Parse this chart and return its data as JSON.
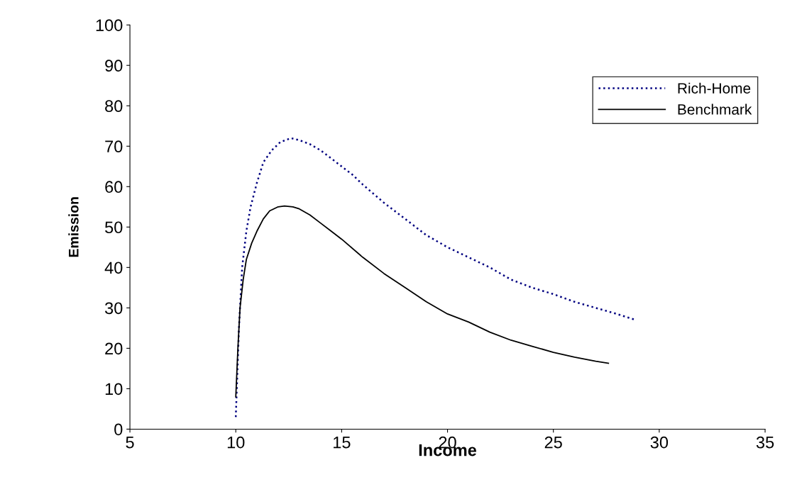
{
  "chart_data": {
    "type": "line",
    "xlabel": "Income",
    "ylabel": "Emission",
    "xlim": [
      5,
      35
    ],
    "xticks": [
      5,
      10,
      15,
      20,
      25,
      30,
      35
    ],
    "ylim": [
      0,
      100
    ],
    "yticks": [
      0,
      10,
      20,
      30,
      40,
      50,
      60,
      70,
      80,
      90,
      100
    ],
    "grid": false,
    "legend": "top right",
    "marker": "none",
    "series": [
      {
        "name": "Rich-Home",
        "color": "#000080",
        "line_style": "dotted",
        "x": [
          10,
          10.15,
          10.3,
          10.5,
          10.7,
          11,
          11.3,
          11.7,
          12.1,
          12.6,
          13,
          13.5,
          14,
          14.5,
          15,
          15.5,
          16,
          17,
          18,
          19,
          20,
          21,
          22,
          23,
          24,
          25,
          26,
          27,
          28,
          28.9
        ],
        "values": [
          3,
          25,
          40,
          49,
          55,
          61,
          66,
          69,
          71,
          72,
          71.5,
          70.5,
          69,
          67,
          65,
          63,
          60.5,
          56,
          52,
          48,
          45,
          42.5,
          40,
          37,
          35,
          33.4,
          31.5,
          30,
          28.5,
          27
        ]
      },
      {
        "name": "Benchmark",
        "color": "#000000",
        "line_style": "solid",
        "x": [
          10,
          10.1,
          10.2,
          10.35,
          10.5,
          10.75,
          11,
          11.3,
          11.6,
          12,
          12.3,
          12.7,
          13,
          13.5,
          14,
          14.5,
          15,
          16,
          17,
          18,
          19,
          20,
          21,
          22,
          23,
          24,
          25,
          26,
          27,
          27.6
        ],
        "values": [
          8,
          20,
          30,
          37,
          42,
          46,
          49,
          52,
          54,
          55,
          55.2,
          55,
          54.5,
          53,
          51,
          49,
          47,
          42.5,
          38.5,
          35,
          31.5,
          28.5,
          26.5,
          24,
          22,
          20.5,
          19,
          17.8,
          16.8,
          16.3
        ]
      }
    ]
  }
}
